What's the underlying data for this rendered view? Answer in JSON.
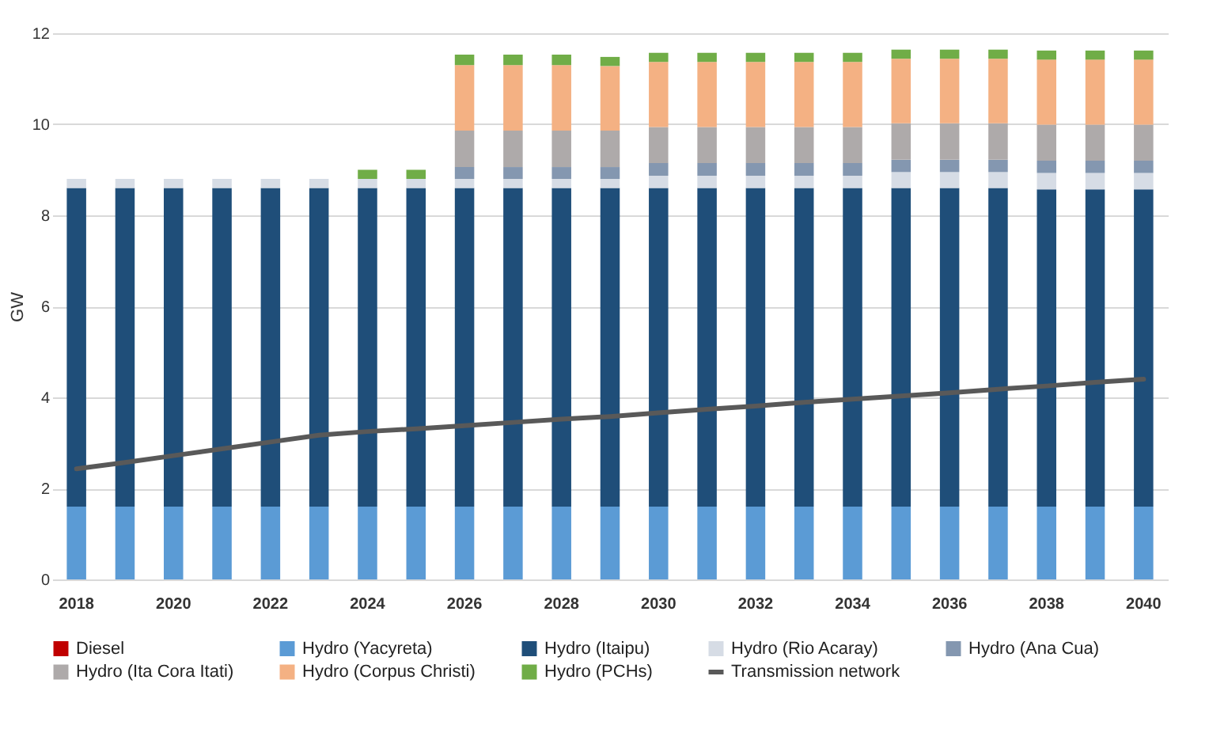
{
  "chart_data": {
    "type": "bar",
    "stacked": true,
    "ylabel": "GW",
    "categories": [
      "2018",
      null,
      "2020",
      null,
      "2022",
      null,
      "2024",
      null,
      "2026",
      null,
      "2028",
      null,
      "2030",
      null,
      "2032",
      null,
      "2034",
      null,
      "2036",
      null,
      "2038",
      null,
      "2040"
    ],
    "ylim": [
      0,
      12
    ],
    "yticks": [
      0,
      2,
      4,
      6,
      8,
      10,
      12
    ],
    "grid": "y",
    "legend": "bottom",
    "series": [
      {
        "name": "Diesel",
        "color": "#c00000",
        "values": [
          0,
          0,
          0,
          0,
          0,
          0,
          0,
          0,
          0,
          0,
          0,
          0,
          0,
          0,
          0,
          0,
          0,
          0,
          0,
          0,
          0,
          0,
          0
        ]
      },
      {
        "name": "Hydro (Yacyreta)",
        "color": "#5b9bd5",
        "values": [
          1.6,
          1.6,
          1.6,
          1.6,
          1.6,
          1.6,
          1.6,
          1.6,
          1.6,
          1.6,
          1.6,
          1.6,
          1.6,
          1.6,
          1.6,
          1.6,
          1.6,
          1.6,
          1.6,
          1.6,
          1.6,
          1.6,
          1.6
        ]
      },
      {
        "name": "Hydro (Itaipu)",
        "color": "#1f4e79",
        "values": [
          7.0,
          7.0,
          7.0,
          7.0,
          7.0,
          7.0,
          7.0,
          7.0,
          7.0,
          7.0,
          7.0,
          7.0,
          7.0,
          7.0,
          7.0,
          7.0,
          7.0,
          7.0,
          7.0,
          7.0,
          6.97,
          6.97,
          6.97
        ]
      },
      {
        "name": "Hydro (Rio Acaray)",
        "color": "#d6dce5",
        "values": [
          0.2,
          0.2,
          0.2,
          0.2,
          0.2,
          0.2,
          0.2,
          0.2,
          0.2,
          0.2,
          0.2,
          0.2,
          0.27,
          0.27,
          0.27,
          0.27,
          0.27,
          0.35,
          0.35,
          0.35,
          0.36,
          0.36,
          0.36
        ]
      },
      {
        "name": "Hydro (Ana Cua)",
        "color": "#8497b0",
        "values": [
          null,
          null,
          null,
          null,
          null,
          null,
          null,
          null,
          0.26,
          0.26,
          0.26,
          0.26,
          0.28,
          0.28,
          0.28,
          0.28,
          0.28,
          0.27,
          0.27,
          0.27,
          0.27,
          0.27,
          0.27
        ]
      },
      {
        "name": "Hydro (Ita Cora Itati)",
        "color": "#aeaaaa",
        "values": [
          null,
          null,
          null,
          null,
          null,
          null,
          null,
          null,
          0.8,
          0.8,
          0.8,
          0.8,
          0.79,
          0.79,
          0.79,
          0.79,
          0.79,
          0.8,
          0.8,
          0.8,
          0.79,
          0.79,
          0.79
        ]
      },
      {
        "name": "Hydro (Corpus Christi)",
        "color": "#f4b183",
        "values": [
          null,
          null,
          null,
          null,
          null,
          null,
          null,
          null,
          1.44,
          1.44,
          1.44,
          1.42,
          1.43,
          1.43,
          1.43,
          1.43,
          1.43,
          1.42,
          1.42,
          1.42,
          1.43,
          1.43,
          1.43
        ]
      },
      {
        "name": "Hydro (PCHs)",
        "color": "#70ad47",
        "values": [
          null,
          null,
          null,
          null,
          null,
          null,
          0.2,
          0.2,
          0.23,
          0.23,
          0.23,
          0.2,
          0.2,
          0.2,
          0.2,
          0.2,
          0.2,
          0.2,
          0.2,
          0.2,
          0.2,
          0.2,
          0.2
        ]
      },
      {
        "name": "Transmission network",
        "type": "line",
        "color": "#595959",
        "values": [
          2.43,
          2.57,
          2.72,
          2.87,
          3.02,
          3.17,
          3.25,
          3.31,
          3.38,
          3.45,
          3.52,
          3.58,
          3.66,
          3.74,
          3.81,
          3.89,
          3.96,
          4.03,
          4.1,
          4.18,
          4.25,
          4.33,
          4.4
        ]
      }
    ]
  }
}
